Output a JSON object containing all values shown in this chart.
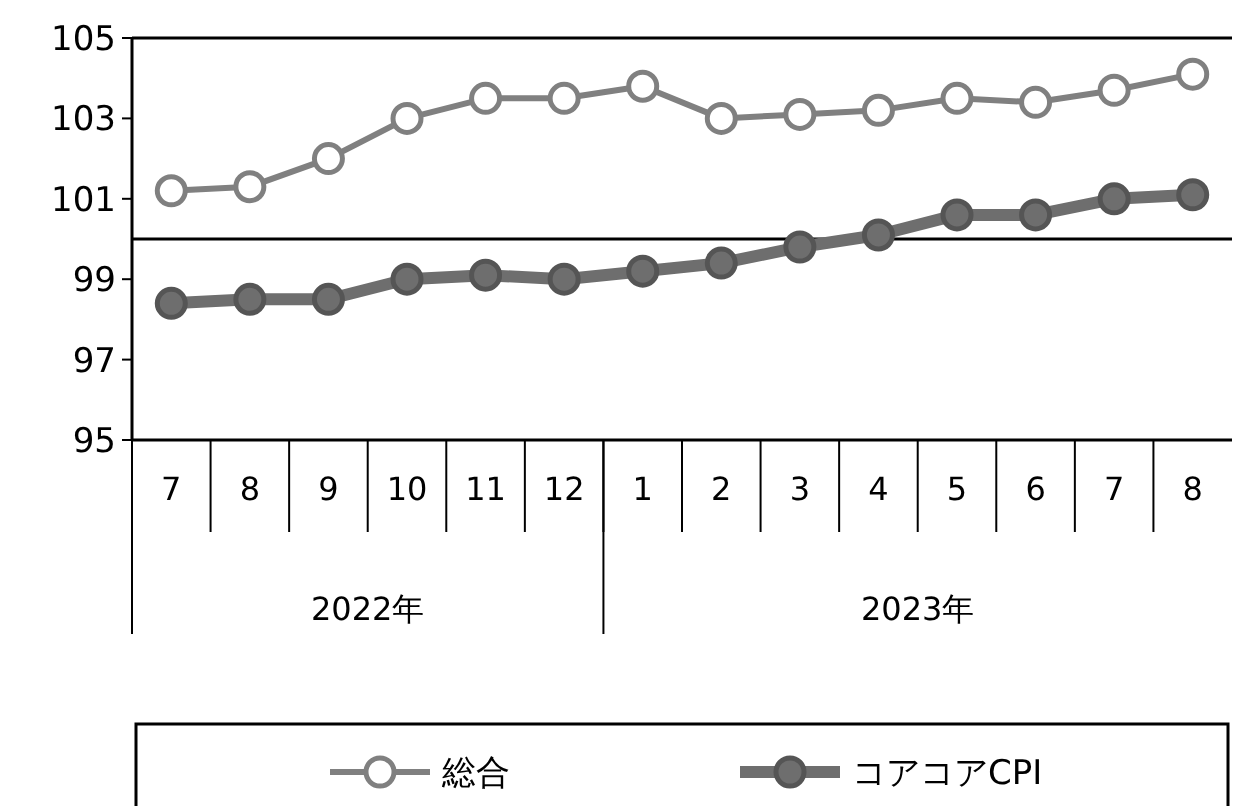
{
  "chart_data": {
    "type": "line",
    "categories": [
      "7",
      "8",
      "9",
      "10",
      "11",
      "12",
      "1",
      "2",
      "3",
      "4",
      "5",
      "6",
      "7",
      "8"
    ],
    "series": [
      {
        "name": "総合",
        "color": "#808080",
        "values": [
          101.2,
          101.3,
          102.0,
          103.0,
          103.5,
          103.5,
          103.8,
          103.0,
          103.1,
          103.2,
          103.5,
          103.4,
          103.7,
          104.1
        ]
      },
      {
        "name": "コアコアCPI",
        "color": "#6e6e6e",
        "values": [
          98.4,
          98.5,
          98.5,
          99.0,
          99.1,
          99.0,
          99.2,
          99.4,
          99.8,
          100.1,
          100.6,
          100.6,
          101.0,
          101.1
        ]
      }
    ],
    "ylim": [
      95,
      105
    ],
    "yticks": [
      95,
      97,
      99,
      101,
      103,
      105
    ],
    "ref_lines": [
      {
        "axis": "y",
        "value": 100,
        "color": "#000000"
      }
    ],
    "annotations": [
      "2022年",
      "2023年"
    ],
    "marker": "circle",
    "legend": "bottom"
  }
}
